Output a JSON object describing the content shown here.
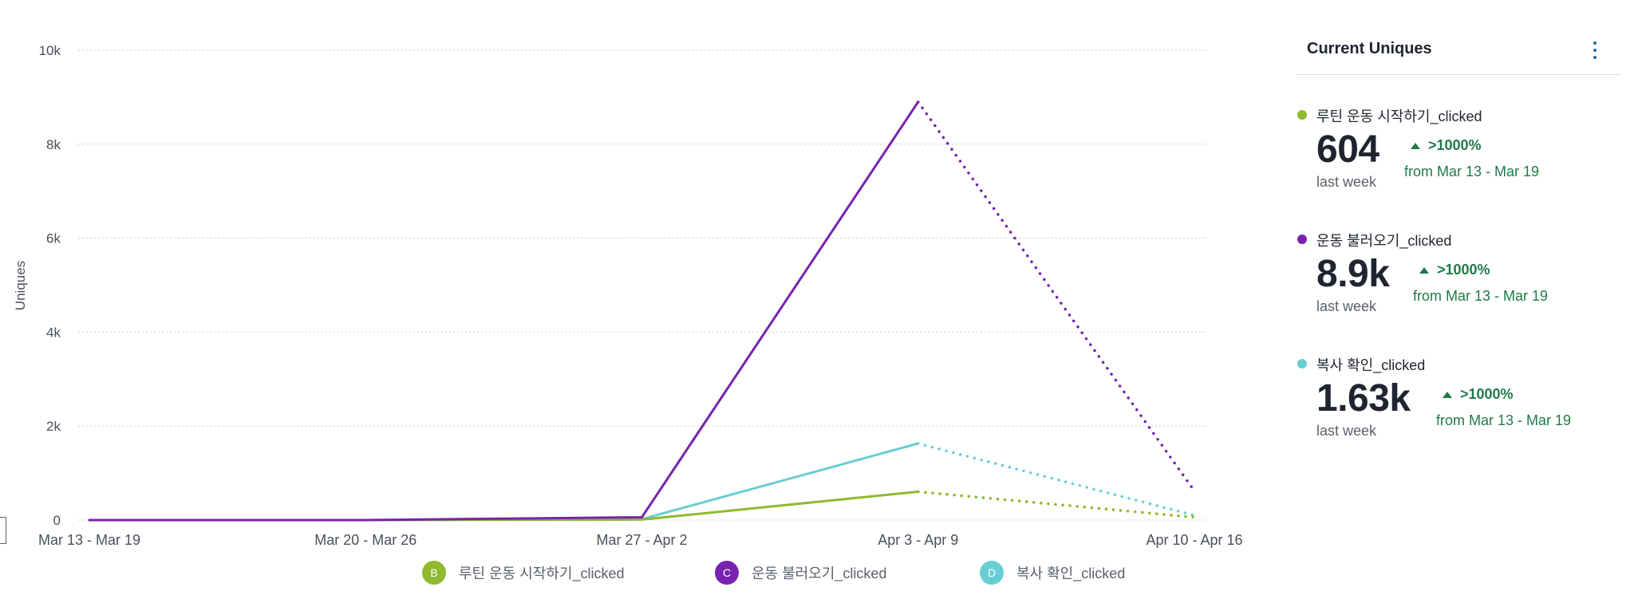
{
  "chart_data": {
    "type": "line",
    "categories": [
      "Mar 13 - Mar 19",
      "Mar 20 - Mar 26",
      "Mar 27 - Apr 2",
      "Apr 3 - Apr 9",
      "Apr 10 - Apr 16"
    ],
    "ylabel": "Uniques",
    "xlabel": "",
    "ylim": [
      0,
      10000
    ],
    "yticks": [
      {
        "value": 0,
        "label": "0"
      },
      {
        "value": 2000,
        "label": "2k"
      },
      {
        "value": 4000,
        "label": "4k"
      },
      {
        "value": 6000,
        "label": "6k"
      },
      {
        "value": 8000,
        "label": "8k"
      },
      {
        "value": 10000,
        "label": "10k"
      }
    ],
    "grid": true,
    "legend_position": "bottom",
    "incomplete_last_period": true,
    "series": [
      {
        "letter": "B",
        "name": "루틴 운동 시작하기_clicked",
        "color": "#8fb92e",
        "values": [
          0,
          0,
          10,
          604,
          60
        ]
      },
      {
        "letter": "C",
        "name": "운동 불러오기_clicked",
        "color": "#7a22b0",
        "values": [
          0,
          0,
          60,
          8900,
          620
        ]
      },
      {
        "letter": "D",
        "name": "복사 확인_clicked",
        "color": "#69ced3",
        "values": [
          0,
          0,
          20,
          1630,
          100
        ]
      }
    ]
  },
  "panel": {
    "title": "Current Uniques",
    "metrics": [
      {
        "name": "루틴 운동 시작하기_clicked",
        "color": "#8fb92e",
        "value": "604",
        "caption": "last week",
        "change": ">1000%",
        "compare": "from Mar 13 - Mar 19"
      },
      {
        "name": "운동 불러오기_clicked",
        "color": "#7a22b0",
        "value": "8.9k",
        "caption": "last week",
        "change": ">1000%",
        "compare": "from Mar 13 - Mar 19"
      },
      {
        "name": "복사 확인_clicked",
        "color": "#69ced3",
        "value": "1.63k",
        "caption": "last week",
        "change": ">1000%",
        "compare": "from Mar 13 - Mar 19"
      }
    ]
  }
}
